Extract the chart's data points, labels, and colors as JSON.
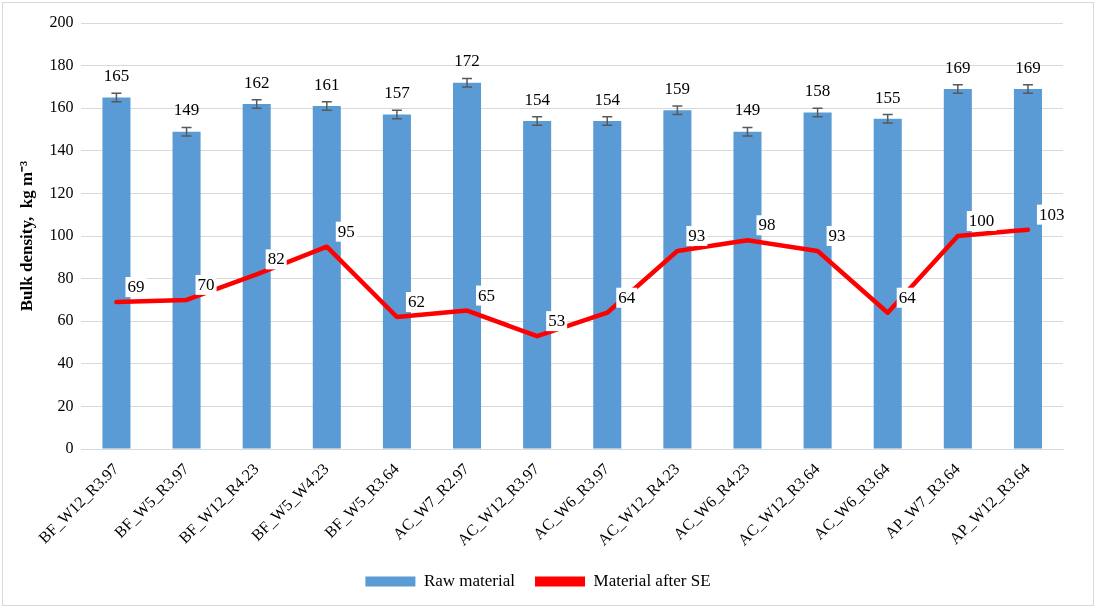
{
  "chart_data": {
    "type": "bar",
    "ylabel": "Bulk density,  kg m⁻³",
    "categories": [
      "BF_W12_R3.97",
      "BF_W5_R3.97",
      "BF_W12_R4.23",
      "BF_W5_W4.23",
      "BF_W5_R3.64",
      "AC_W7_R2.97",
      "AC_W12_R3.97",
      "AC_W6_R3.97",
      "AC_W12_R4.23",
      "AC_W6_R4.23",
      "AC_W12_R3.64",
      "AC_W6_R3.64",
      "AP_W7_R3.64",
      "AP_W12_R3.64"
    ],
    "series": [
      {
        "name": "Raw material",
        "color": "#5b9bd5",
        "values": [
          165,
          149,
          162,
          161,
          157,
          172,
          154,
          154,
          159,
          149,
          158,
          155,
          169,
          169
        ],
        "errors": [
          2,
          2,
          2,
          2,
          2,
          2,
          2,
          2,
          2,
          2,
          2,
          2,
          2,
          2
        ]
      },
      {
        "name": "Material after SE",
        "type": "line",
        "color": "#ff0000",
        "values": [
          69,
          70,
          82,
          95,
          62,
          65,
          53,
          64,
          93,
          98,
          93,
          64,
          100,
          103
        ]
      }
    ],
    "ylim": [
      0,
      200
    ],
    "yticks": [
      0,
      20,
      40,
      60,
      80,
      100,
      120,
      140,
      160,
      180,
      200
    ],
    "grid": "y",
    "legend": "bottom",
    "marker": "none",
    "line_style": "solid",
    "data_labels": true
  }
}
